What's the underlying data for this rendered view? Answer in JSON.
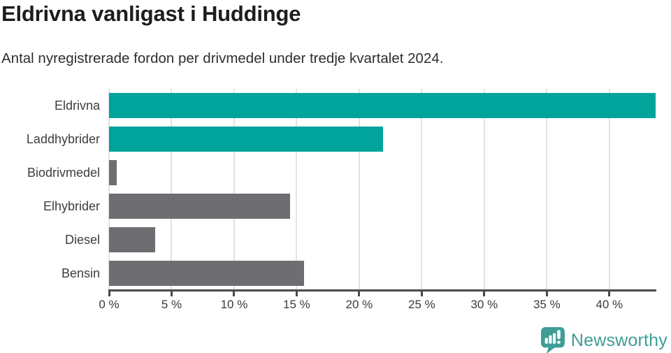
{
  "header": {
    "title": "Eldrivna vanligast i Huddinge",
    "subtitle": "Antal nyregistrerade fordon per drivmedel under tredje kvartalet 2024."
  },
  "chart_data": {
    "type": "bar",
    "orientation": "horizontal",
    "title": "Eldrivna vanligast i Huddinge",
    "subtitle": "Antal nyregistrerade fordon per drivmedel under tredje kvartalet 2024.",
    "categories": [
      "Eldrivna",
      "Laddhybrider",
      "Biodrivmedel",
      "Elhybrider",
      "Diesel",
      "Bensin"
    ],
    "values": [
      43.7,
      21.9,
      0.6,
      14.5,
      3.7,
      15.6
    ],
    "unit": "%",
    "colors": [
      "#00a49b",
      "#00a49b",
      "#6d6d72",
      "#6d6d72",
      "#6d6d72",
      "#6d6d72"
    ],
    "xlim": [
      0,
      43.7
    ],
    "x_ticks": [
      0,
      5,
      10,
      15,
      20,
      25,
      30,
      35,
      40
    ],
    "x_tick_labels": [
      "0 %",
      "5 %",
      "10 %",
      "15 %",
      "20 %",
      "25 %",
      "30 %",
      "35 %",
      "40 %"
    ],
    "grid": true,
    "legend": false,
    "xlabel": "",
    "ylabel": ""
  },
  "footer": {
    "brand": "Newsworthy",
    "logo_icon": "bar-chart-speech-bubble-icon"
  },
  "colors": {
    "accent_teal": "#00a49b",
    "bar_gray": "#6d6d72",
    "brand_teal": "#3f9d96",
    "axis": "#4a4a4a",
    "gridline": "#e2e2e2",
    "title_text": "#1d1d1d",
    "subtitle_text": "#2e2e2e",
    "label_text": "#3d3d3d",
    "tick_text": "#3b3b3b"
  }
}
